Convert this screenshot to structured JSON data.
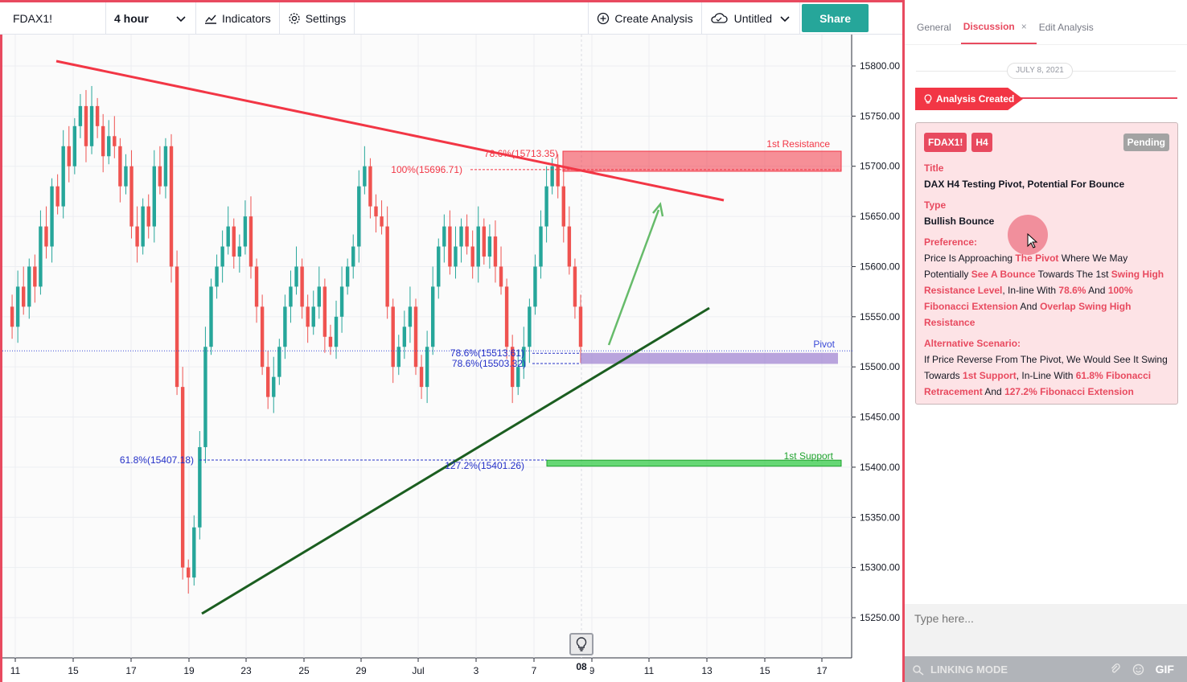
{
  "toolbar": {
    "symbol": "FDAX1!",
    "interval": "4 hour",
    "indicators": "Indicators",
    "settings": "Settings",
    "create_analysis": "Create Analysis",
    "layout_name": "Untitled",
    "share": "Share"
  },
  "chart_data": {
    "type": "candlestick",
    "symbol": "FDAX1!",
    "timeframe": "4 hour",
    "price_axis": [
      "15800.00",
      "15750.00",
      "15700.00",
      "15650.00",
      "15600.00",
      "15550.00",
      "15500.00",
      "15450.00",
      "15400.00",
      "15350.00",
      "15300.00",
      "15250.00"
    ],
    "time_axis": [
      "11",
      "15",
      "17",
      "19",
      "23",
      "25",
      "29",
      "Jul",
      "3",
      "7",
      "9",
      "11",
      "13",
      "15",
      "17"
    ],
    "time_marker": "08",
    "ylim": [
      15210,
      15830
    ],
    "annotations": {
      "resistance_label": "1st Resistance",
      "pivot_label": "Pivot",
      "support_label": "1st Support",
      "fib_786_high": "78.6%(15713.35)",
      "fib_100": "100%(15696.71)",
      "fib_786_a": "78.6%(15513.61)",
      "fib_786_b": "78.6%(15503.32)",
      "fib_618": "61.8%(15407.18)",
      "fib_1272": "127.2%(15401.26)"
    },
    "levels": {
      "resistance_zone": [
        15695,
        15715
      ],
      "pivot_zone": [
        15503,
        15514
      ],
      "support_zone": [
        15401,
        15407
      ]
    },
    "trendlines": [
      {
        "name": "downtrend resistance",
        "color": "#f23645"
      },
      {
        "name": "uptrend support",
        "color": "#1b5e20"
      }
    ],
    "colors": {
      "up": "#26a69a",
      "down": "#ef5350"
    }
  },
  "panel": {
    "tabs": [
      "General",
      "Discussion",
      "Edit Analysis"
    ],
    "active_tab": "Discussion",
    "close_glyph": "×",
    "date": "JULY 8, 2021",
    "event": "Analysis Created",
    "card": {
      "symbol_badge": "FDAX1!",
      "timeframe_badge": "H4",
      "status": "Pending",
      "title_label": "Title",
      "title": "DAX H4 Testing Pivot, Potential For Bounce",
      "type_label": "Type",
      "type": "Bullish Bounce",
      "preference_label": "Preference:",
      "preference": [
        {
          "t": "Price Is Approaching ",
          "h": false
        },
        {
          "t": "The Pivot",
          "h": true
        },
        {
          "t": " Where We May Potentially ",
          "h": false
        },
        {
          "t": "See A Bounce",
          "h": true
        },
        {
          "t": " Towards The 1st ",
          "h": false
        },
        {
          "t": "Swing High Resistance Level",
          "h": true
        },
        {
          "t": ", In-line With ",
          "h": false
        },
        {
          "t": "78.6%",
          "h": true
        },
        {
          "t": " And ",
          "h": false
        },
        {
          "t": "100% Fibonacci Extension",
          "h": true
        },
        {
          "t": " And ",
          "h": false
        },
        {
          "t": "Overlap Swing High Resistance",
          "h": true
        }
      ],
      "alternative_label": "Alternative Scenario:",
      "alternative": [
        {
          "t": "If Price Reverse From The Pivot, We Would See It Swing Towards ",
          "h": false
        },
        {
          "t": "1st Support",
          "h": true
        },
        {
          "t": ", In-Line With ",
          "h": false
        },
        {
          "t": "61.8% Fibonacci Retracement",
          "h": true
        },
        {
          "t": " And ",
          "h": false
        },
        {
          "t": "127.2% Fibonacci Extension",
          "h": true
        }
      ]
    },
    "comment_placeholder": "Type here...",
    "linking_mode": "LINKING MODE",
    "gif": "GIF"
  }
}
